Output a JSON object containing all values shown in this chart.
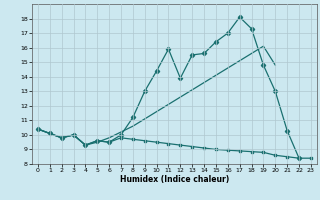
{
  "xlabel": "Humidex (Indice chaleur)",
  "bg_color": "#cce8f0",
  "grid_color": "#b0c8d0",
  "line_color": "#1a7070",
  "xlim": [
    -0.5,
    23.5
  ],
  "ylim": [
    8,
    19
  ],
  "xticks": [
    0,
    1,
    2,
    3,
    4,
    5,
    6,
    7,
    8,
    9,
    10,
    11,
    12,
    13,
    14,
    15,
    16,
    17,
    18,
    19,
    20,
    21,
    22,
    23
  ],
  "yticks": [
    8,
    9,
    10,
    11,
    12,
    13,
    14,
    15,
    16,
    17,
    18
  ],
  "line1_x": [
    0,
    1,
    2,
    3,
    4,
    5,
    6,
    7,
    8,
    9,
    10,
    11,
    12,
    13,
    14,
    15,
    16,
    17,
    18,
    19,
    20,
    21,
    22
  ],
  "line1_y": [
    10.4,
    10.1,
    9.8,
    10.0,
    9.3,
    9.6,
    9.5,
    10.0,
    11.2,
    13.0,
    14.4,
    15.9,
    13.9,
    15.5,
    15.6,
    16.4,
    17.0,
    18.1,
    17.3,
    14.8,
    13.0,
    10.3,
    8.4
  ],
  "line2_x": [
    0,
    1,
    2,
    3,
    4,
    5,
    6,
    7,
    8,
    9,
    10,
    11,
    12,
    13,
    14,
    15,
    16,
    17,
    18,
    19,
    20
  ],
  "line2_y": [
    10.4,
    10.1,
    9.8,
    10.0,
    9.3,
    9.5,
    9.8,
    10.2,
    10.6,
    11.1,
    11.6,
    12.1,
    12.6,
    13.1,
    13.6,
    14.1,
    14.6,
    15.1,
    15.6,
    16.1,
    14.8
  ],
  "line3_x": [
    0,
    1,
    2,
    3,
    4,
    5,
    6,
    7,
    8,
    9,
    10,
    11,
    12,
    13,
    14,
    15,
    16,
    17,
    18,
    19,
    20,
    21,
    22,
    23
  ],
  "line3_y": [
    10.4,
    10.1,
    9.8,
    10.0,
    9.3,
    9.6,
    9.5,
    9.8,
    9.7,
    9.6,
    9.5,
    9.4,
    9.3,
    9.2,
    9.1,
    9.0,
    8.95,
    8.9,
    8.85,
    8.8,
    8.6,
    8.5,
    8.4,
    8.4
  ]
}
